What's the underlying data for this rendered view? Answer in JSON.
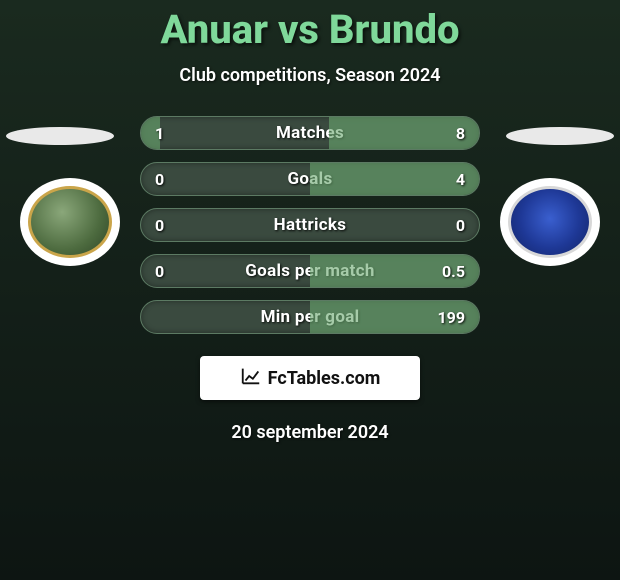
{
  "title": "Anuar vs Brundo",
  "subtitle": "Club competitions, Season 2024",
  "date": "20 september 2024",
  "brand": "FcTables.com",
  "colors": {
    "title": "#7fd89a",
    "text": "#ffffff",
    "pill_bg": "#3a4a3f",
    "pill_border": "#5c7a63",
    "fill": "#6aa86f",
    "bg_top": "#1a2a1f",
    "bg_bottom": "#0d1512"
  },
  "rows": [
    {
      "label": "Matches",
      "left": "1",
      "right": "8",
      "left_pct": 11,
      "right_pct": 89
    },
    {
      "label": "Goals",
      "left": "0",
      "right": "4",
      "left_pct": 0,
      "right_pct": 100
    },
    {
      "label": "Hattricks",
      "left": "0",
      "right": "0",
      "left_pct": 0,
      "right_pct": 0
    },
    {
      "label": "Goals per match",
      "left": "0",
      "right": "0.5",
      "left_pct": 0,
      "right_pct": 100
    },
    {
      "label": "Min per goal",
      "left": "",
      "right": "199",
      "left_pct": 0,
      "right_pct": 100
    }
  ]
}
